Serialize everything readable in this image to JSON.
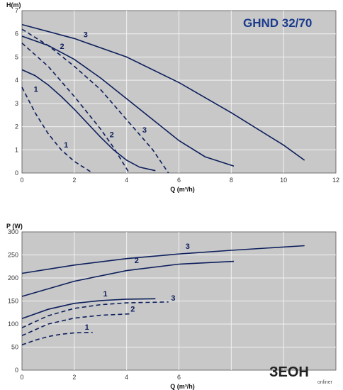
{
  "chart_data": [
    {
      "type": "line",
      "title": "GHND 32/70",
      "xlabel": "Q (m³/h)",
      "ylabel": "H(m)",
      "xlim": [
        0,
        12
      ],
      "ylim": [
        0,
        7
      ],
      "xticks": [
        "0",
        "2",
        "4",
        "6",
        "8",
        "10",
        "12"
      ],
      "yticks": [
        "0",
        "1",
        "2",
        "3",
        "4",
        "5",
        "6",
        "7"
      ],
      "grid": true,
      "series": [
        {
          "name": "1",
          "style": "solid",
          "x": [
            0,
            0.5,
            1,
            1.5,
            2,
            2.5,
            3,
            3.5,
            4,
            4.5,
            5.1
          ],
          "y": [
            4.45,
            4.2,
            3.8,
            3.3,
            2.75,
            2.15,
            1.55,
            1.0,
            0.55,
            0.25,
            0.1
          ]
        },
        {
          "name": "2",
          "style": "solid",
          "x": [
            0,
            1,
            2,
            3,
            4,
            5,
            6,
            7,
            8.1
          ],
          "y": [
            5.9,
            5.5,
            4.9,
            4.1,
            3.2,
            2.3,
            1.4,
            0.7,
            0.3
          ]
        },
        {
          "name": "3",
          "style": "solid",
          "x": [
            0,
            2,
            4,
            6,
            8,
            10,
            10.8
          ],
          "y": [
            6.4,
            5.8,
            5.0,
            3.9,
            2.6,
            1.2,
            0.55
          ]
        },
        {
          "name": "1",
          "style": "dashed",
          "x": [
            0,
            0.5,
            1,
            1.5,
            2,
            2.7
          ],
          "y": [
            3.7,
            2.6,
            1.7,
            1.0,
            0.5,
            0.0
          ]
        },
        {
          "name": "2",
          "style": "dashed",
          "x": [
            0,
            1,
            2,
            3,
            3.5,
            4.1
          ],
          "y": [
            5.6,
            4.6,
            3.3,
            1.9,
            1.1,
            0.0
          ]
        },
        {
          "name": "3",
          "style": "dashed",
          "x": [
            0,
            1,
            2,
            3,
            4,
            5,
            5.6
          ],
          "y": [
            6.2,
            5.5,
            4.6,
            3.6,
            2.3,
            1.0,
            0.0
          ]
        }
      ],
      "labels": [
        {
          "text": "1",
          "x": 0.45,
          "y": 3.5
        },
        {
          "text": "2",
          "x": 1.45,
          "y": 5.35
        },
        {
          "text": "3",
          "x": 2.35,
          "y": 5.85
        },
        {
          "text": "1",
          "x": 1.6,
          "y": 1.1
        },
        {
          "text": "2",
          "x": 3.35,
          "y": 1.55
        },
        {
          "text": "3",
          "x": 4.6,
          "y": 1.75
        }
      ]
    },
    {
      "type": "line",
      "xlabel": "Q (m³/h)",
      "ylabel": "P (W)",
      "xlim": [
        0,
        12
      ],
      "ylim": [
        0,
        300
      ],
      "xticks": [
        "0",
        "2",
        "4",
        "6"
      ],
      "yticks": [
        "0",
        "50",
        "100",
        "150",
        "200",
        "250",
        "300"
      ],
      "grid": true,
      "series": [
        {
          "name": "1",
          "style": "solid",
          "x": [
            0,
            1,
            2,
            3,
            4,
            5.1
          ],
          "y": [
            112,
            132,
            145,
            151,
            154,
            155
          ]
        },
        {
          "name": "2",
          "style": "solid",
          "x": [
            0,
            2,
            4,
            6,
            8.1
          ],
          "y": [
            160,
            193,
            216,
            230,
            236
          ]
        },
        {
          "name": "3",
          "style": "solid",
          "x": [
            0,
            2,
            4,
            6,
            8,
            10.8
          ],
          "y": [
            210,
            228,
            242,
            252,
            260,
            270
          ]
        },
        {
          "name": "1",
          "style": "dashed",
          "x": [
            0,
            0.5,
            1,
            1.5,
            2,
            2.7
          ],
          "y": [
            55,
            65,
            73,
            78,
            81,
            82
          ]
        },
        {
          "name": "2",
          "style": "dashed",
          "x": [
            0,
            1,
            2,
            3,
            4.1
          ],
          "y": [
            75,
            100,
            113,
            119,
            122
          ]
        },
        {
          "name": "3",
          "style": "dashed",
          "x": [
            0,
            1,
            2,
            3,
            4,
            5.6
          ],
          "y": [
            92,
            118,
            134,
            142,
            146,
            148
          ]
        }
      ],
      "labels": [
        {
          "text": "1",
          "x": 3.1,
          "y": 160
        },
        {
          "text": "2",
          "x": 4.3,
          "y": 232
        },
        {
          "text": "3",
          "x": 6.25,
          "y": 263
        },
        {
          "text": "3",
          "x": 5.7,
          "y": 151
        },
        {
          "text": "2",
          "x": 4.15,
          "y": 127
        },
        {
          "text": "1",
          "x": 2.4,
          "y": 88
        }
      ]
    }
  ],
  "logo": {
    "text": "ЗЕОН",
    "sub": "onliner"
  }
}
